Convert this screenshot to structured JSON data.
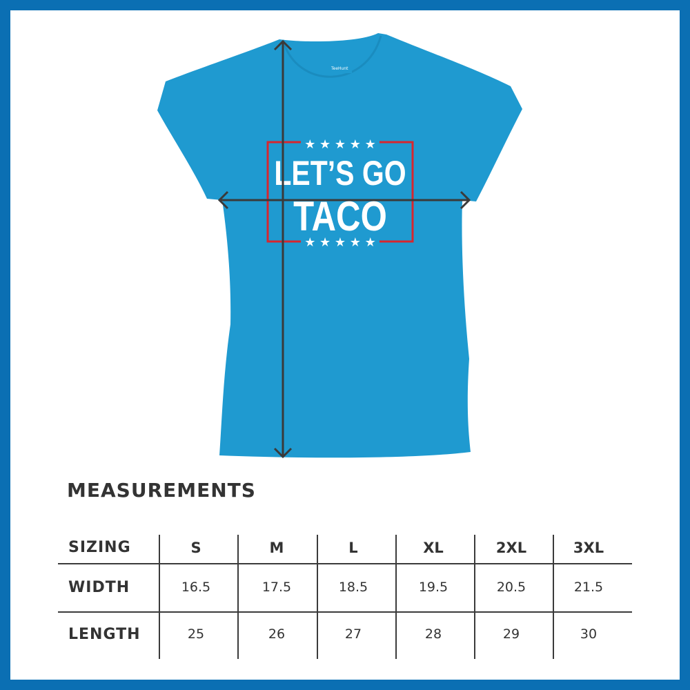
{
  "product": {
    "brand_label": "TeeHunt",
    "print_line1": "LET’S GO",
    "print_line2": "TACO",
    "shirt_color": "#1f9ad0",
    "frame_color": "#0b6fb3",
    "print_box_color": "#d7262e"
  },
  "measurements": {
    "title": "MEASUREMENTS",
    "header_label": "SIZING",
    "sizes": [
      "S",
      "M",
      "L",
      "XL",
      "2XL",
      "3XL"
    ],
    "rows": [
      {
        "label": "WIDTH",
        "values": [
          "16.5",
          "17.5",
          "18.5",
          "19.5",
          "20.5",
          "21.5"
        ]
      },
      {
        "label": "LENGTH",
        "values": [
          "25",
          "26",
          "27",
          "28",
          "29",
          "30"
        ]
      }
    ]
  }
}
